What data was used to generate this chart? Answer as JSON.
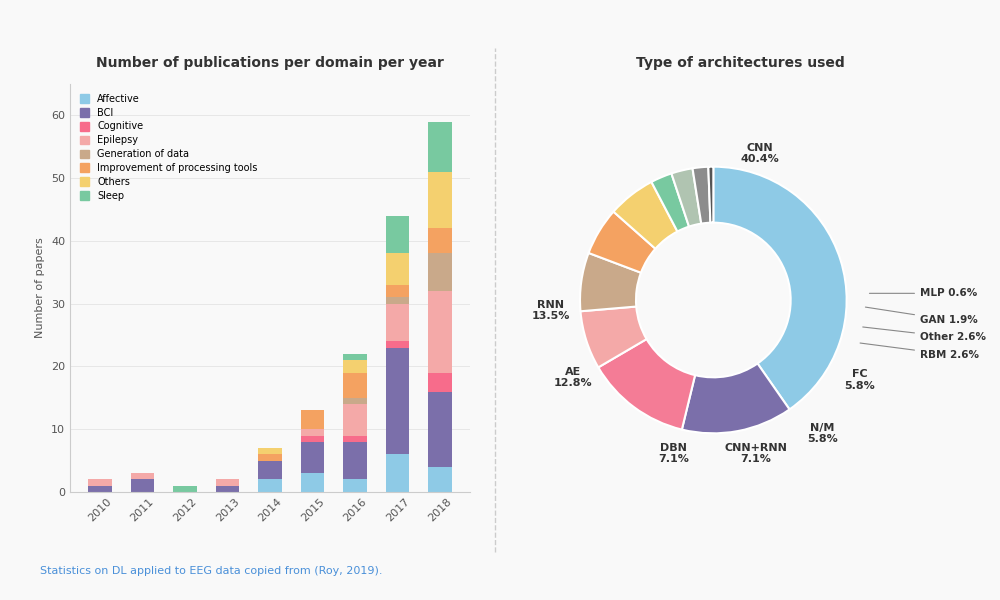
{
  "bar_title": "Number of publications per domain per year",
  "bar_ylabel": "Number of papers",
  "years": [
    "2010",
    "2011",
    "2012",
    "2013",
    "2014",
    "2015",
    "2016",
    "2017",
    "2018"
  ],
  "categories": [
    "Affective",
    "BCI",
    "Cognitive",
    "Epilepsy",
    "Generation of data",
    "Improvement of processing tools",
    "Others",
    "Sleep"
  ],
  "bar_colors": [
    "#8ecae6",
    "#7b6faa",
    "#f76c8b",
    "#f4a9a8",
    "#c9a98a",
    "#f4a261",
    "#f4d06f",
    "#78c9a0"
  ],
  "bar_data": {
    "Affective": [
      0,
      0,
      0,
      0,
      2,
      3,
      2,
      6,
      4
    ],
    "BCI": [
      1,
      2,
      0,
      1,
      3,
      5,
      6,
      17,
      12
    ],
    "Cognitive": [
      0,
      0,
      0,
      0,
      0,
      1,
      1,
      1,
      3
    ],
    "Epilepsy": [
      1,
      1,
      0,
      1,
      0,
      1,
      5,
      6,
      13
    ],
    "Generation of data": [
      0,
      0,
      0,
      0,
      0,
      0,
      1,
      1,
      6
    ],
    "Improvement of processing tools": [
      0,
      0,
      0,
      0,
      1,
      3,
      4,
      2,
      4
    ],
    "Others": [
      0,
      0,
      0,
      0,
      1,
      0,
      2,
      5,
      9
    ],
    "Sleep": [
      0,
      0,
      1,
      0,
      0,
      0,
      1,
      6,
      8
    ]
  },
  "pie_title": "Type of architectures used",
  "pie_labels": [
    "CNN",
    "RNN",
    "AE",
    "DBN",
    "CNN+RNN",
    "N/M",
    "FC",
    "RBM",
    "Other",
    "GAN",
    "MLP"
  ],
  "pie_values": [
    40.4,
    13.5,
    12.8,
    7.1,
    7.1,
    5.8,
    5.8,
    2.6,
    2.6,
    1.9,
    0.6
  ],
  "pie_colors": [
    "#8ecae6",
    "#7b6faa",
    "#f47c96",
    "#f4a9a8",
    "#c9a98a",
    "#f4a261",
    "#f4d06f",
    "#78c9a0",
    "#b0c4b1",
    "#8c8c8c",
    "#555555"
  ],
  "pie_label_positions": {
    "CNN": "outside_top",
    "RNN": "outside_left",
    "AE": "outside_left",
    "DBN": "outside_bottom",
    "CNN+RNN": "outside_bottom",
    "N/M": "outside_bottom",
    "FC": "outside_right",
    "RBM": "outside_right",
    "Other": "outside_right",
    "GAN": "outside_right",
    "MLP": "outside_right"
  },
  "footnote": "Statistics on DL applied to EEG data copied from (Roy, 2019).",
  "footnote_color": "#4a90d9",
  "bg_color": "#f9f9f9"
}
